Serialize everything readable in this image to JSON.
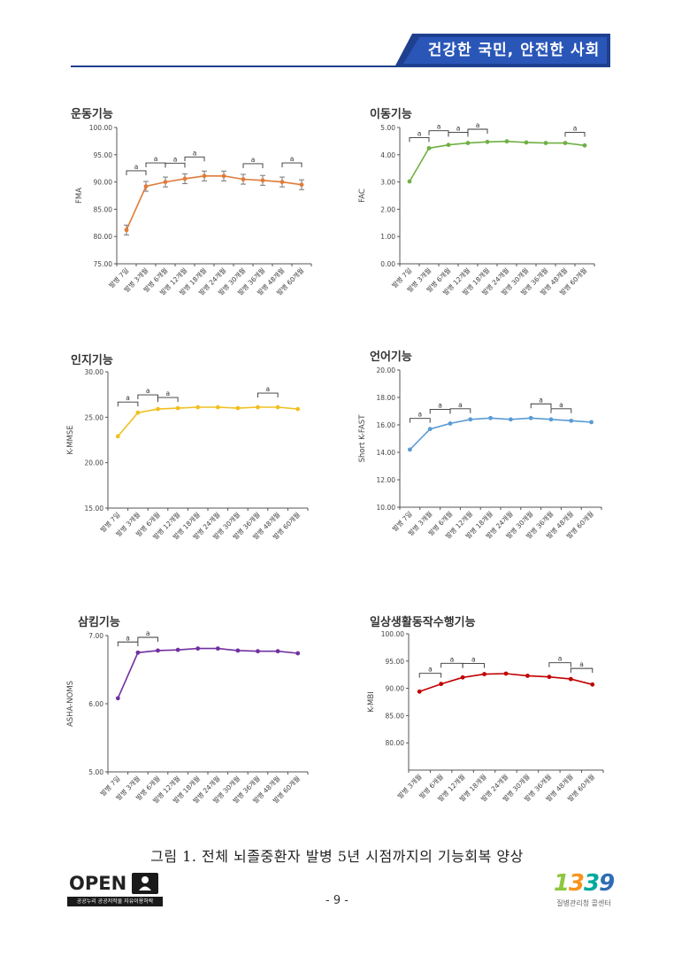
{
  "header": {
    "title": "건강한 국민, 안전한 사회",
    "band_color": "#1f3f8f"
  },
  "caption": "그림 1. 전체 뇌졸중환자 발병 5년 시점까지의 기능회복 양상",
  "page_number": "- 9 -",
  "footer": {
    "open_badge_word": "OPEN",
    "open_badge_sub": "공공누리 공공저작물 자유이용허락",
    "logo_number": "1339",
    "logo_sub": "질병관리청 콜센터"
  },
  "chart_data": [
    {
      "type": "line",
      "title": "운동기능",
      "ylabel": "FMA",
      "ylim": [
        75,
        100
      ],
      "yticks": [
        "75.00",
        "80.00",
        "85.00",
        "90.00",
        "95.00",
        "100.00"
      ],
      "categories": [
        "발병 7일",
        "발병 3개월",
        "발병 6개월",
        "발병 12개월",
        "발병 18개월",
        "발병 24개월",
        "발병 30개월",
        "발병 36개월",
        "발병 48개월",
        "발병 60개월"
      ],
      "values": [
        81.2,
        89.2,
        90.0,
        90.6,
        91.1,
        91.1,
        90.5,
        90.3,
        90.0,
        89.5
      ],
      "errors": [
        0.9,
        0.9,
        0.9,
        0.9,
        0.9,
        0.9,
        0.9,
        0.9,
        0.9,
        0.9
      ],
      "color": "#e07b39",
      "brackets": [
        {
          "from": 0,
          "to": 1,
          "label": "a"
        },
        {
          "from": 1,
          "to": 2,
          "label": "a"
        },
        {
          "from": 2,
          "to": 3,
          "label": "a"
        },
        {
          "from": 3,
          "to": 4,
          "label": "a"
        },
        {
          "from": 6,
          "to": 7,
          "label": "a"
        },
        {
          "from": 8,
          "to": 9,
          "label": "a"
        }
      ]
    },
    {
      "type": "line",
      "title": "이동기능",
      "ylabel": "FAC",
      "ylim": [
        0,
        5
      ],
      "yticks": [
        "0.00",
        "1.00",
        "2.00",
        "3.00",
        "4.00",
        "5.00"
      ],
      "categories": [
        "발병 7일",
        "발병 3개월",
        "발병 6개월",
        "발병 12개월",
        "발병 18개월",
        "발병 24개월",
        "발병 30개월",
        "발병 36개월",
        "발병 48개월",
        "발병 60개월"
      ],
      "values": [
        3.02,
        4.24,
        4.36,
        4.43,
        4.47,
        4.49,
        4.45,
        4.43,
        4.43,
        4.34
      ],
      "color": "#70b043",
      "brackets": [
        {
          "from": 0,
          "to": 1,
          "label": "a"
        },
        {
          "from": 1,
          "to": 2,
          "label": "a"
        },
        {
          "from": 2,
          "to": 3,
          "label": "a"
        },
        {
          "from": 3,
          "to": 4,
          "label": "a"
        },
        {
          "from": 8,
          "to": 9,
          "label": "a"
        }
      ]
    },
    {
      "type": "line",
      "title": "인지기능",
      "ylabel": "K-MMSE",
      "ylim": [
        15,
        30
      ],
      "yticks": [
        "15.00",
        "20.00",
        "25.00",
        "30.00"
      ],
      "categories": [
        "발병 7일",
        "발병 3개월",
        "발병 6개월",
        "발병 12개월",
        "발병 18개월",
        "발병 24개월",
        "발병 30개월",
        "발병 36개월",
        "발병 48개월",
        "발병 60개월"
      ],
      "values": [
        22.9,
        25.5,
        25.9,
        26.0,
        26.1,
        26.1,
        26.0,
        26.1,
        26.1,
        25.9
      ],
      "color": "#f0c020",
      "brackets": [
        {
          "from": 0,
          "to": 1,
          "label": "a"
        },
        {
          "from": 1,
          "to": 2,
          "label": "a"
        },
        {
          "from": 2,
          "to": 3,
          "label": "a"
        },
        {
          "from": 7,
          "to": 8,
          "label": "a"
        }
      ]
    },
    {
      "type": "line",
      "title": "언어기능",
      "ylabel": "Short K-FAST",
      "ylim": [
        10,
        20
      ],
      "yticks": [
        "10.00",
        "12.00",
        "14.00",
        "16.00",
        "18.00",
        "20.00"
      ],
      "categories": [
        "발병 7일",
        "발병 3개월",
        "발병 6개월",
        "발병 12개월",
        "발병 18개월",
        "발병 24개월",
        "발병 30개월",
        "발병 36개월",
        "발병 48개월",
        "발병 60개월"
      ],
      "values": [
        14.2,
        15.7,
        16.1,
        16.4,
        16.5,
        16.4,
        16.5,
        16.4,
        16.3,
        16.2
      ],
      "color": "#5b9bd5",
      "brackets": [
        {
          "from": 0,
          "to": 1,
          "label": "a"
        },
        {
          "from": 1,
          "to": 2,
          "label": "a"
        },
        {
          "from": 2,
          "to": 3,
          "label": "a"
        },
        {
          "from": 6,
          "to": 7,
          "label": "a"
        },
        {
          "from": 7,
          "to": 8,
          "label": "a"
        }
      ]
    },
    {
      "type": "line",
      "title": "삼킴기능",
      "ylabel": "ASHA-NOMS",
      "ylim": [
        5,
        7
      ],
      "yticks": [
        "5.00",
        "6.00",
        "7.00"
      ],
      "categories": [
        "발병 7일",
        "발병 3개월",
        "발병 6개월",
        "발병 12개월",
        "발병 18개월",
        "발병 24개월",
        "발병 30개월",
        "발병 36개월",
        "발병 48개월",
        "발병 60개월"
      ],
      "values": [
        6.08,
        6.75,
        6.78,
        6.79,
        6.81,
        6.81,
        6.78,
        6.77,
        6.77,
        6.74
      ],
      "color": "#7030a0",
      "brackets": [
        {
          "from": 0,
          "to": 1,
          "label": "a"
        },
        {
          "from": 1,
          "to": 2,
          "label": "a"
        }
      ]
    },
    {
      "type": "line",
      "title": "일상생활동작수행기능",
      "ylabel": "K-MBI",
      "ylim": [
        75,
        100
      ],
      "yticks": [
        "80.00",
        "85.00",
        "90.00",
        "95.00",
        "100.00"
      ],
      "categories": [
        "발병 3개월",
        "발병 6개월",
        "발병 12개월",
        "발병 18개월",
        "발병 24개월",
        "발병 30개월",
        "발병 36개월",
        "발병 48개월",
        "발병 60개월"
      ],
      "values": [
        89.4,
        90.8,
        92.0,
        92.6,
        92.7,
        92.3,
        92.1,
        91.7,
        90.7
      ],
      "color": "#c00000",
      "brackets": [
        {
          "from": 0,
          "to": 1,
          "label": "a"
        },
        {
          "from": 1,
          "to": 2,
          "label": "a"
        },
        {
          "from": 2,
          "to": 3,
          "label": "a"
        },
        {
          "from": 6,
          "to": 7,
          "label": "a"
        },
        {
          "from": 7,
          "to": 8,
          "label": "a"
        }
      ]
    }
  ]
}
